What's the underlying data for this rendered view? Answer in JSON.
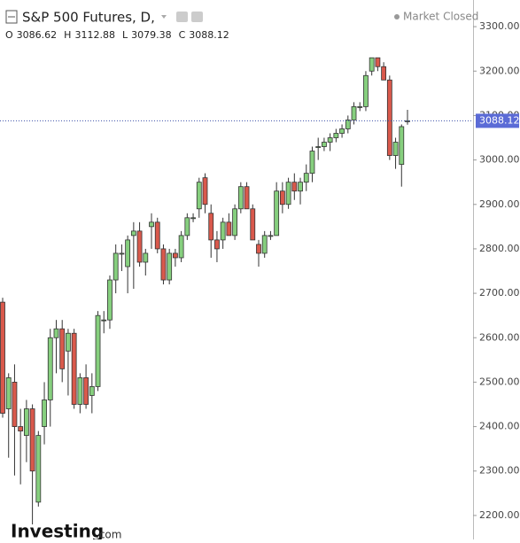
{
  "chart_data": {
    "type": "candlestick",
    "title": "S&P 500 Futures, D,",
    "market_status": "Market Closed",
    "watermark": {
      "brand": "Investing",
      "suffix": ".com"
    },
    "ohlc_labels": [
      "O",
      "H",
      "L",
      "C"
    ],
    "up_color": "#86cf7e",
    "down_color": "#d9594c",
    "ylim": [
      2146,
      3360
    ],
    "yticks": [
      {
        "value": 2200,
        "label": "2200.00"
      },
      {
        "value": 2300,
        "label": "2300.00"
      },
      {
        "value": 2400,
        "label": "2400.00"
      },
      {
        "value": 2500,
        "label": "2500.00"
      },
      {
        "value": 2600,
        "label": "2600.00"
      },
      {
        "value": 2700,
        "label": "2700.00"
      },
      {
        "value": 2800,
        "label": "2800.00"
      },
      {
        "value": 2900,
        "label": "2900.00"
      },
      {
        "value": 3000,
        "label": "3000.00"
      },
      {
        "value": 3100,
        "label": "3100.00"
      },
      {
        "value": 3200,
        "label": "3200.00"
      },
      {
        "value": 3300,
        "label": "3300.00"
      }
    ],
    "series": [
      {
        "open": [
          2680,
          2440,
          2500,
          2400,
          2380,
          2440,
          2230,
          2400,
          2460,
          2600,
          2620,
          2570,
          2610,
          2450,
          2510,
          2470,
          2490,
          2640,
          2640,
          2730,
          2790,
          2760,
          2830,
          2840,
          2770,
          2850,
          2860,
          2800,
          2730,
          2790,
          2780,
          2830,
          2870,
          2890,
          2960,
          2880,
          2820,
          2820,
          2860,
          2830,
          2890,
          2940,
          2890,
          2810,
          2790,
          2830,
          2830,
          2930,
          2900,
          2950,
          2930,
          2950,
          2970,
          3030,
          3030,
          3040,
          3050,
          3060,
          3070,
          3090,
          3120,
          3120,
          3200,
          3230,
          3210,
          3180,
          3010,
          2990,
          3086.62
        ],
        "high": [
          2690,
          2520,
          2540,
          2440,
          2460,
          2450,
          2390,
          2500,
          2620,
          2640,
          2640,
          2620,
          2620,
          2520,
          2540,
          2520,
          2660,
          2660,
          2740,
          2810,
          2810,
          2830,
          2860,
          2860,
          2800,
          2880,
          2870,
          2810,
          2800,
          2800,
          2840,
          2880,
          2880,
          2960,
          2970,
          2900,
          2840,
          2870,
          2880,
          2900,
          2950,
          2950,
          2900,
          2820,
          2840,
          2840,
          2950,
          2950,
          2960,
          2970,
          2960,
          2990,
          3030,
          3050,
          3050,
          3060,
          3070,
          3080,
          3100,
          3130,
          3130,
          3200,
          3230,
          3230,
          3220,
          3190,
          3050,
          3080,
          3112.88
        ],
        "low": [
          2420,
          2330,
          2290,
          2270,
          2320,
          2180,
          2220,
          2360,
          2400,
          2520,
          2500,
          2470,
          2440,
          2430,
          2440,
          2430,
          2480,
          2610,
          2620,
          2700,
          2750,
          2700,
          2710,
          2760,
          2740,
          2800,
          2790,
          2720,
          2720,
          2760,
          2770,
          2820,
          2860,
          2870,
          2880,
          2780,
          2770,
          2800,
          2830,
          2820,
          2880,
          2890,
          2820,
          2760,
          2780,
          2820,
          2830,
          2880,
          2890,
          2910,
          2900,
          2930,
          2950,
          3000,
          3020,
          3020,
          3040,
          3050,
          3060,
          3080,
          3110,
          3110,
          3190,
          3200,
          3180,
          3000,
          2980,
          2940,
          3079.38
        ],
        "close": [
          2430,
          2510,
          2400,
          2390,
          2440,
          2300,
          2380,
          2460,
          2600,
          2620,
          2530,
          2610,
          2450,
          2510,
          2450,
          2490,
          2650,
          2640,
          2730,
          2790,
          2790,
          2820,
          2840,
          2770,
          2790,
          2860,
          2800,
          2730,
          2790,
          2780,
          2830,
          2870,
          2870,
          2950,
          2900,
          2820,
          2800,
          2860,
          2830,
          2890,
          2940,
          2890,
          2820,
          2790,
          2830,
          2830,
          2930,
          2900,
          2950,
          2930,
          2950,
          2970,
          3020,
          3030,
          3040,
          3050,
          3060,
          3070,
          3090,
          3120,
          3120,
          3190,
          3230,
          3210,
          3180,
          3010,
          3040,
          3075,
          3088.12
        ]
      }
    ]
  }
}
